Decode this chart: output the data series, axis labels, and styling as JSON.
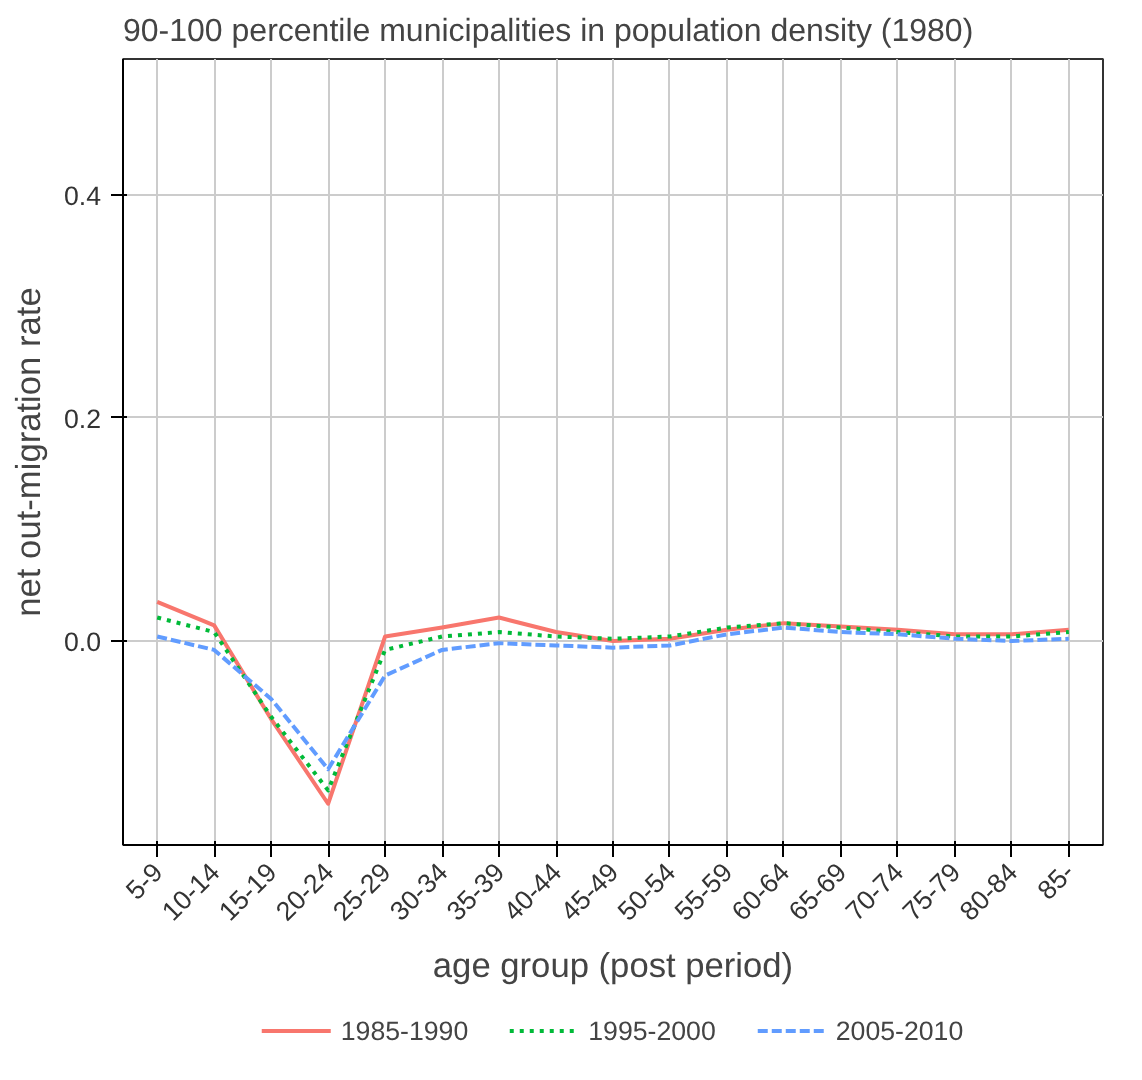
{
  "chart_data": {
    "type": "line",
    "title": "90-100 percentile municipalities in population density (1980)",
    "xlabel": "age group (post period)",
    "ylabel": "net out-migration rate",
    "categories": [
      "5-9",
      "10-14",
      "15-19",
      "20-24",
      "25-29",
      "30-34",
      "35-39",
      "40-44",
      "45-49",
      "50-54",
      "55-59",
      "60-64",
      "65-69",
      "70-74",
      "75-79",
      "80-84",
      "85-"
    ],
    "series": [
      {
        "name": "1985-1990",
        "color": "#f8766d",
        "line_style": "solid",
        "values": [
          0.035,
          0.014,
          -0.07,
          -0.146,
          0.004,
          0.012,
          0.021,
          0.008,
          0.0,
          0.002,
          0.01,
          0.016,
          0.013,
          0.01,
          0.006,
          0.006,
          0.01
        ]
      },
      {
        "name": "1995-2000",
        "color": "#00ba38",
        "line_style": "dotted",
        "values": [
          0.021,
          0.008,
          -0.068,
          -0.134,
          -0.008,
          0.004,
          0.008,
          0.004,
          0.002,
          0.004,
          0.012,
          0.016,
          0.012,
          0.008,
          0.004,
          0.004,
          0.008
        ]
      },
      {
        "name": "2005-2010",
        "color": "#619cff",
        "line_style": "dashed",
        "values": [
          0.004,
          -0.008,
          -0.052,
          -0.115,
          -0.031,
          -0.008,
          -0.002,
          -0.004,
          -0.006,
          -0.004,
          0.006,
          0.012,
          0.008,
          0.006,
          0.002,
          0.0,
          0.002
        ]
      }
    ],
    "ylim": [
      -0.183,
      0.522
    ],
    "yticks": [
      {
        "value": 0,
        "label": "0.0"
      },
      0.2,
      0.4
    ],
    "grid": true,
    "legend": "bottom",
    "marker": "none"
  }
}
